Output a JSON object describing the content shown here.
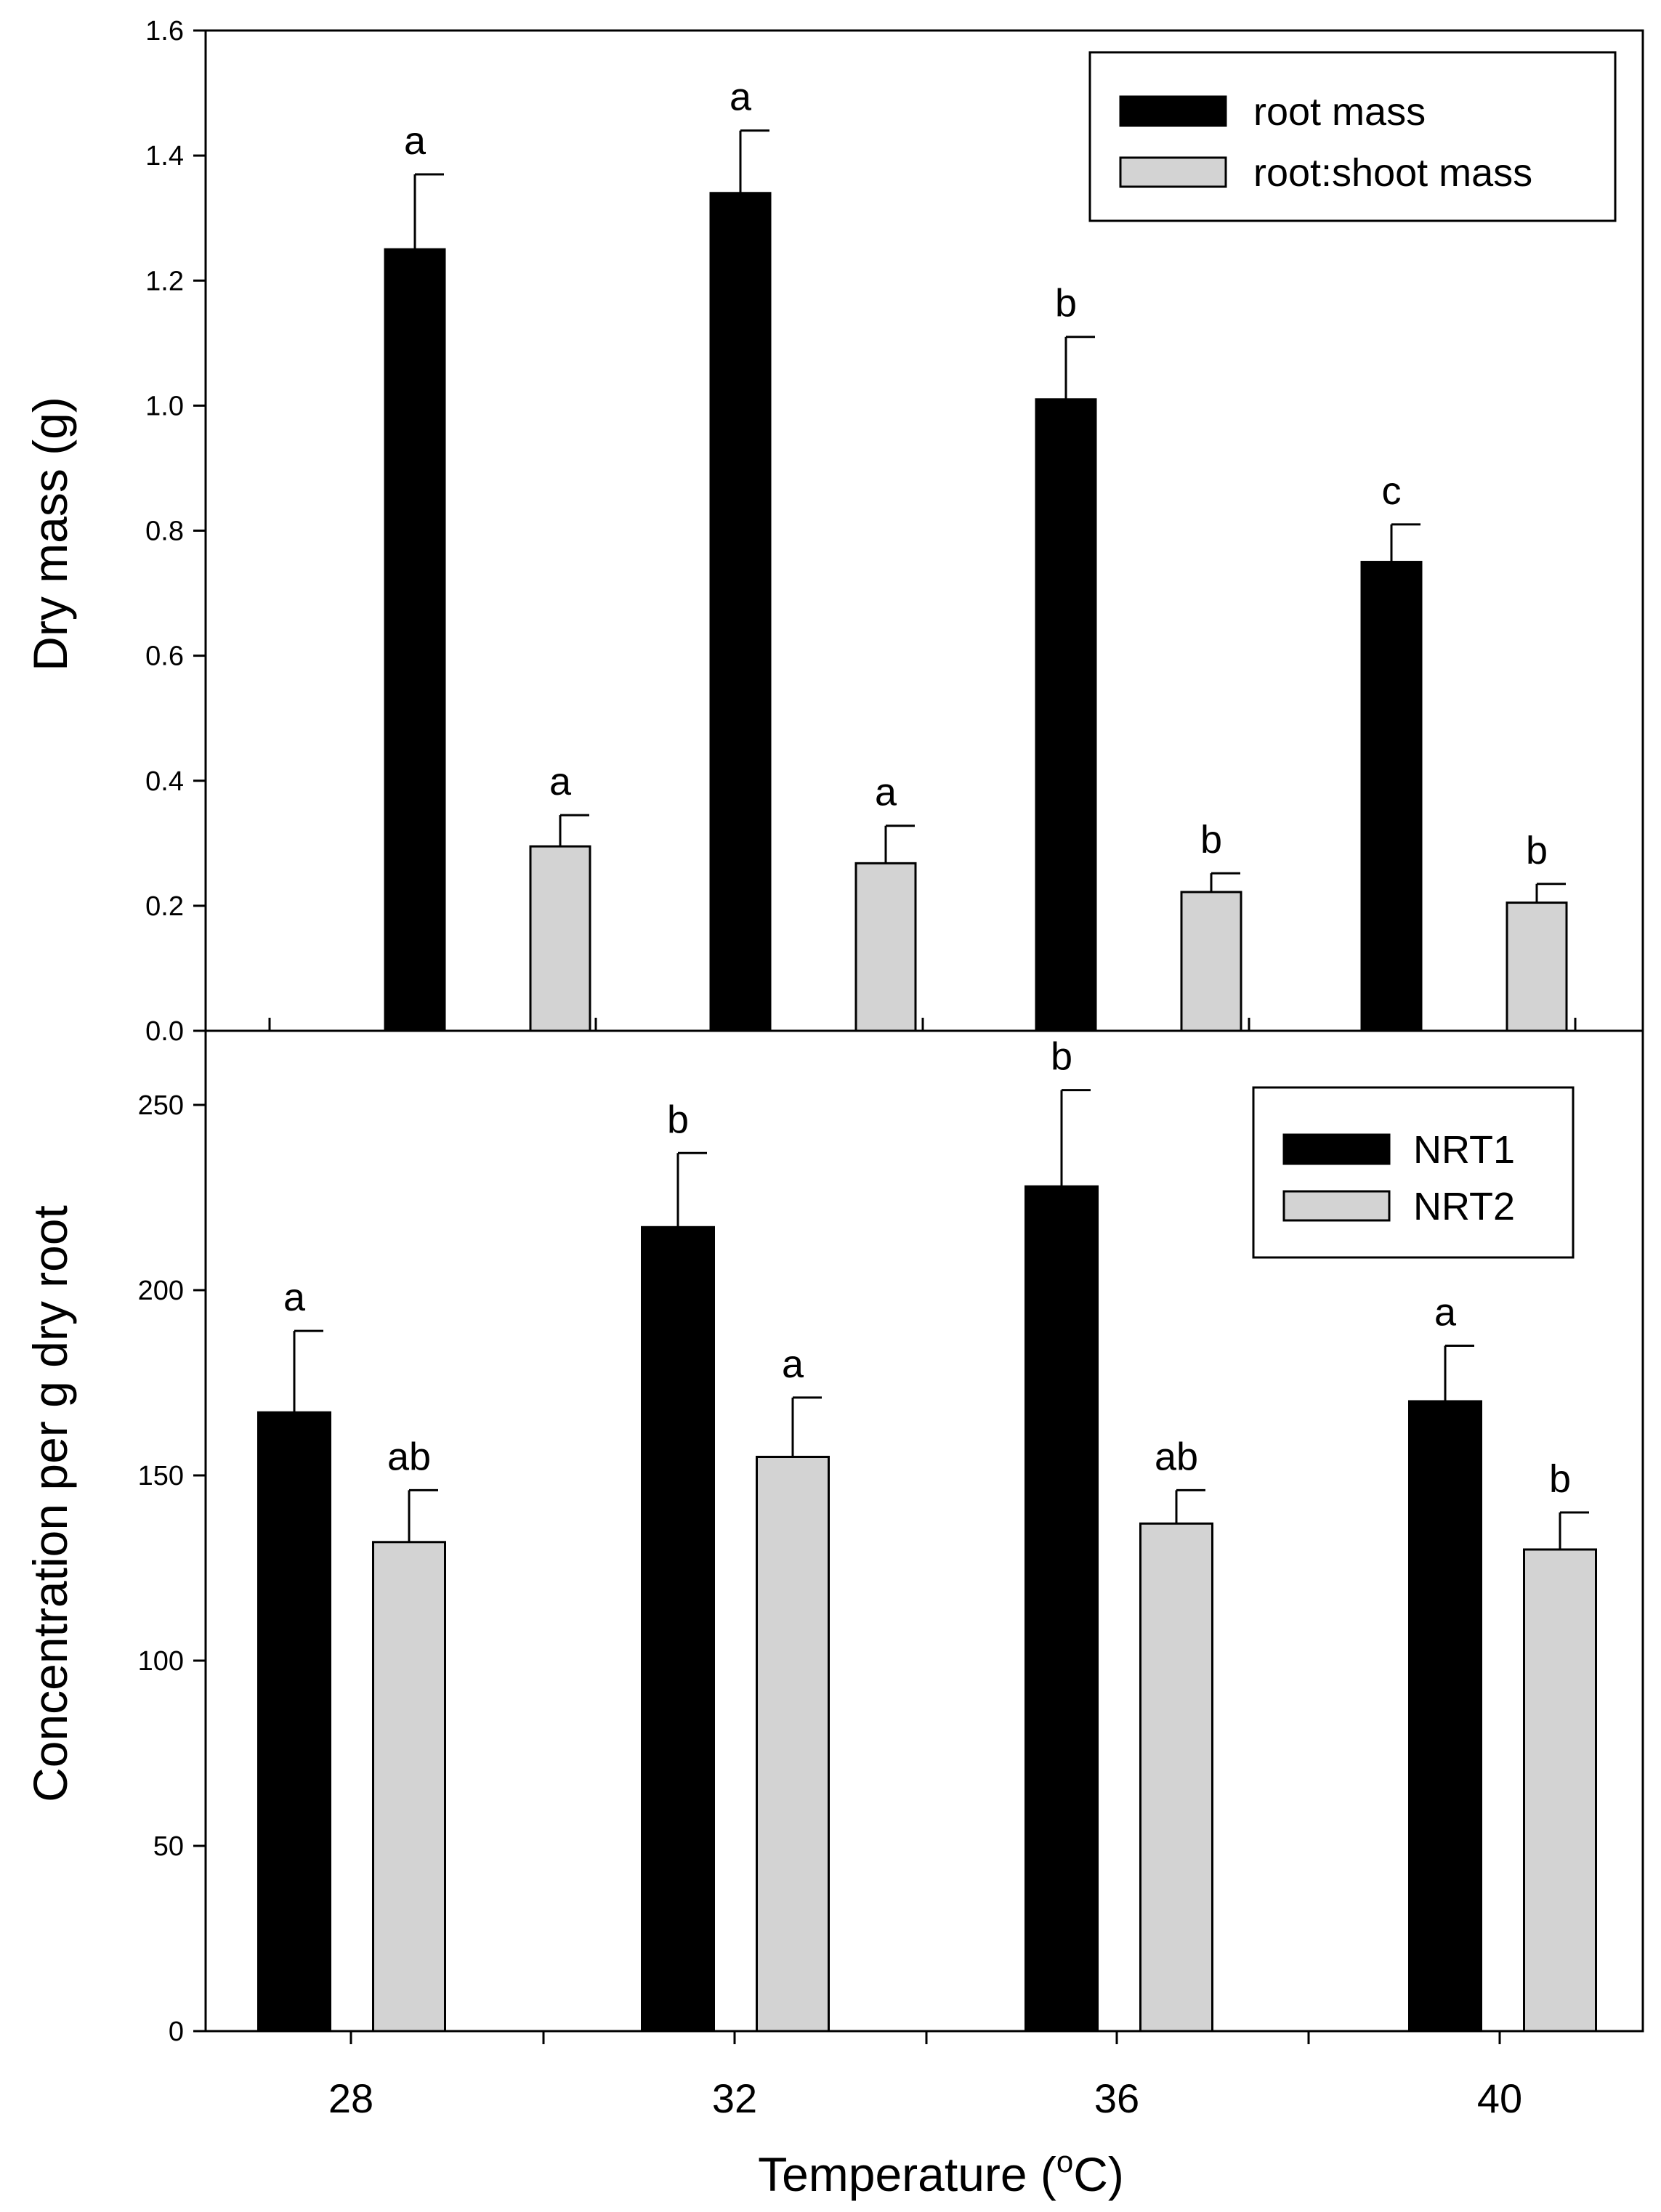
{
  "colors": {
    "primary": "#000000",
    "secondary": "#d3d3d3",
    "axis": "#000000",
    "background": "#ffffff"
  },
  "chart_data": [
    {
      "type": "bar",
      "panel": "top",
      "categories": [
        "28",
        "32",
        "36",
        "40"
      ],
      "ylabel": "Dry mass (g)",
      "xlabel": "",
      "ylim": [
        0,
        1.6
      ],
      "yticks": [
        0.0,
        0.2,
        0.4,
        0.6,
        0.8,
        1.0,
        1.2,
        1.4,
        1.6
      ],
      "ytick_labels": [
        "0.0",
        "0.2",
        "0.4",
        "0.6",
        "0.8",
        "1.0",
        "1.2",
        "1.4",
        "1.6"
      ],
      "legend_position": "top-right",
      "series": [
        {
          "name": "root mass",
          "color": "#000000",
          "values": [
            1.25,
            1.34,
            1.01,
            0.75
          ],
          "errors": [
            0.12,
            0.1,
            0.1,
            0.06
          ],
          "labels": [
            "a",
            "a",
            "b",
            "c"
          ]
        },
        {
          "name": "root:shoot mass",
          "color": "#d3d3d3",
          "values": [
            0.295,
            0.268,
            0.222,
            0.205
          ],
          "errors": [
            0.05,
            0.06,
            0.03,
            0.03
          ],
          "labels": [
            "a",
            "a",
            "b",
            "b"
          ]
        }
      ]
    },
    {
      "type": "bar",
      "panel": "bottom",
      "categories": [
        "28",
        "32",
        "36",
        "40"
      ],
      "ylabel": "Concentration per g dry root",
      "xlabel": "Temperature (°C)",
      "xlabel_parts": {
        "prefix": "Temperature (",
        "superscript": "o",
        "suffix": "C)"
      },
      "ylim": [
        0,
        270
      ],
      "yticks": [
        0,
        50,
        100,
        150,
        200,
        250
      ],
      "ytick_labels": [
        "0",
        "50",
        "100",
        "150",
        "200",
        "250"
      ],
      "legend_position": "top-right",
      "series": [
        {
          "name": "NRT1",
          "color": "#000000",
          "values": [
            167,
            217,
            228,
            170
          ],
          "errors": [
            22,
            20,
            26,
            15
          ],
          "labels": [
            "a",
            "b",
            "b",
            "a"
          ]
        },
        {
          "name": "NRT2",
          "color": "#d3d3d3",
          "values": [
            132,
            155,
            137,
            130
          ],
          "errors": [
            14,
            16,
            9,
            10
          ],
          "labels": [
            "ab",
            "a",
            "ab",
            "b"
          ]
        }
      ]
    }
  ]
}
